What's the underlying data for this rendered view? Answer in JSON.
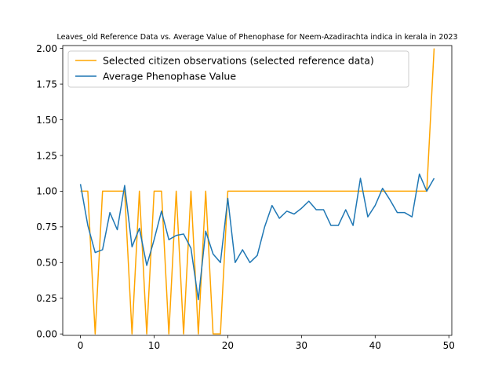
{
  "chart_data": {
    "type": "line",
    "title": "Leaves_old Reference Data vs. Average Value of Phenophase for Neem-Azadirachta indica in kerala in 2023",
    "xlabel": "",
    "ylabel": "",
    "xlim": [
      -2.4,
      50.4
    ],
    "ylim": [
      -0.01,
      2.02
    ],
    "x_ticks": [
      0,
      10,
      20,
      30,
      40,
      50
    ],
    "y_ticks": [
      0.0,
      0.25,
      0.5,
      0.75,
      1.0,
      1.25,
      1.5,
      1.75,
      2.0
    ],
    "x_tick_labels": [
      "0",
      "10",
      "20",
      "30",
      "40",
      "50"
    ],
    "y_tick_labels": [
      "0.00",
      "0.25",
      "0.50",
      "0.75",
      "1.00",
      "1.25",
      "1.50",
      "1.75",
      "2.00"
    ],
    "grid": false,
    "legend_position": "top-left",
    "series": [
      {
        "name": "Selected citizen observations (selected reference data)",
        "color": "#FFA500",
        "x": [
          0,
          1,
          2,
          3,
          4,
          5,
          6,
          7,
          8,
          9,
          10,
          11,
          12,
          13,
          14,
          15,
          16,
          17,
          18,
          19,
          20,
          21,
          22,
          23,
          24,
          25,
          26,
          27,
          28,
          29,
          30,
          31,
          32,
          33,
          34,
          35,
          36,
          37,
          38,
          39,
          40,
          41,
          42,
          43,
          44,
          45,
          46,
          47,
          48
        ],
        "y": [
          1,
          1,
          0,
          1,
          1,
          1,
          1,
          0,
          1,
          0,
          1,
          1,
          0,
          1,
          0,
          1,
          0,
          1,
          0,
          0,
          1,
          1,
          1,
          1,
          1,
          1,
          1,
          1,
          1,
          1,
          1,
          1,
          1,
          1,
          1,
          1,
          1,
          1,
          1,
          1,
          1,
          1,
          1,
          1,
          1,
          1,
          1,
          1,
          2
        ]
      },
      {
        "name": "Average Phenophase Value",
        "color": "#1f77b4",
        "x": [
          0,
          1,
          2,
          3,
          4,
          5,
          6,
          7,
          8,
          9,
          10,
          11,
          12,
          13,
          14,
          15,
          16,
          17,
          18,
          19,
          20,
          21,
          22,
          23,
          24,
          25,
          26,
          27,
          28,
          29,
          30,
          31,
          32,
          33,
          34,
          35,
          36,
          37,
          38,
          39,
          40,
          41,
          42,
          43,
          44,
          45,
          46,
          47,
          48
        ],
        "y": [
          1.05,
          0.76,
          0.57,
          0.59,
          0.85,
          0.73,
          1.04,
          0.61,
          0.74,
          0.48,
          0.66,
          0.86,
          0.66,
          0.69,
          0.7,
          0.6,
          0.24,
          0.72,
          0.56,
          0.5,
          0.95,
          0.5,
          0.59,
          0.5,
          0.55,
          0.75,
          0.9,
          0.81,
          0.86,
          0.84,
          0.88,
          0.93,
          0.87,
          0.87,
          0.76,
          0.76,
          0.87,
          0.76,
          1.09,
          0.82,
          0.9,
          1.02,
          0.94,
          0.85,
          0.85,
          0.82,
          1.12,
          1.0,
          1.09
        ]
      }
    ]
  }
}
